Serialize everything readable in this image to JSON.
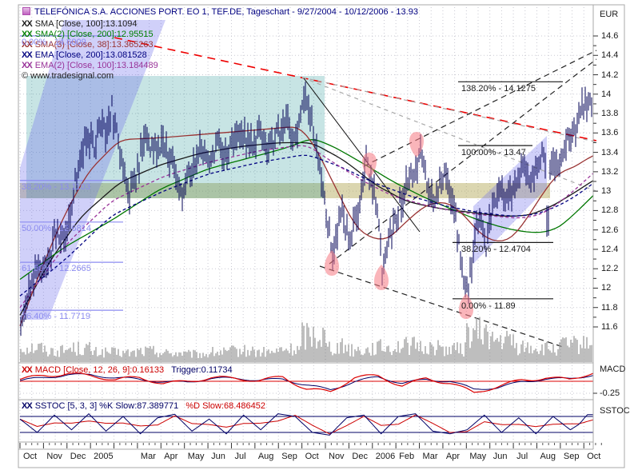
{
  "window": {
    "title": "TELEFÓNICA S.A. ACCIONES PORT. EO 1, TEF.DE, Tageschart - 9/27/2004 - 10/12/2006 - 13.93"
  },
  "copyright": "© www.tradesignal.com",
  "legend": {
    "indicators": [
      {
        "name": "SMA",
        "label": "SMA [Close, 100]:13.1094",
        "color": "#1a1a1a"
      },
      {
        "name": "SMA(2)",
        "label": "SMA(2) [Close, 200]:12.95515",
        "color": "#008000"
      },
      {
        "name": "SMA(3)",
        "label": "SMA(3) [Close, 38]:13.365263",
        "color": "#993333"
      },
      {
        "name": "EMA",
        "label": "EMA [Close, 200]:13.081528",
        "color": "#000080"
      },
      {
        "name": "EMA(2)",
        "label": "EMA(2) [Close, 100]:13.184489",
        "color": "#993399"
      }
    ]
  },
  "macd_legend": {
    "left": "MACD [Close, 12, 26, 9]:0.16133",
    "right": "Trigger:0.11734"
  },
  "sstoc_legend": {
    "left": "SSTOC [5, 3, 3] %K Slow:87.389771",
    "right": "%D Slow:68.486452"
  },
  "axis": {
    "currency_label": "EUR",
    "macd_label": "MACD",
    "macd_tick_label": "-0.25",
    "sstoc_label": "SSTOC"
  },
  "chart_data": {
    "type": "bar",
    "title": "TELEFÓNICA S.A. ACCIONES PORT. EO 1, TEF.DE, Tageschart - 9/27/2004 - 10/12/2006 - 13.93",
    "instrument": "TELEFÓNICA S.A. ACCIONES PORT. EO 1",
    "symbol": "TEF.DE",
    "period": "Tageschart",
    "date_range": "9/27/2004 - 10/12/2006",
    "last_price": 13.93,
    "currency": "EUR",
    "ylim": [
      11.5,
      14.7
    ],
    "price_ticks": [
      14.6,
      14.4,
      14.2,
      14,
      13.8,
      13.6,
      13.4,
      13.2,
      13,
      12.8,
      12.6,
      12.4,
      12.2,
      12,
      11.8,
      11.6
    ],
    "months": [
      "Oct",
      "Nov",
      "Dec",
      "2005",
      "",
      "Mar",
      "Apr",
      "May",
      "Jun",
      "Jul",
      "Aug",
      "Sep",
      "Oct",
      "Nov",
      "Dec",
      "2006",
      "Feb",
      "Mar",
      "Apr",
      "May",
      "Jun",
      "Jul",
      "Aug",
      "Sep",
      "Oct"
    ],
    "price_path": [
      [
        0,
        11.72
      ],
      [
        0.004,
        11.62
      ],
      [
        0.015,
        11.95
      ],
      [
        0.03,
        12.25
      ],
      [
        0.045,
        12.15
      ],
      [
        0.06,
        12.55
      ],
      [
        0.075,
        12.45
      ],
      [
        0.09,
        12.85
      ],
      [
        0.1,
        13.2
      ],
      [
        0.115,
        13.55
      ],
      [
        0.13,
        13.45
      ],
      [
        0.14,
        13.75
      ],
      [
        0.15,
        13.6
      ],
      [
        0.16,
        13.85
      ],
      [
        0.175,
        13.4
      ],
      [
        0.19,
        12.95
      ],
      [
        0.205,
        13.25
      ],
      [
        0.22,
        13.55
      ],
      [
        0.235,
        13.4
      ],
      [
        0.25,
        13.5
      ],
      [
        0.27,
        13.2
      ],
      [
        0.285,
        12.95
      ],
      [
        0.3,
        13.25
      ],
      [
        0.315,
        13.42
      ],
      [
        0.33,
        13.3
      ],
      [
        0.345,
        13.5
      ],
      [
        0.36,
        13.35
      ],
      [
        0.375,
        13.5
      ],
      [
        0.39,
        13.6
      ],
      [
        0.405,
        13.45
      ],
      [
        0.42,
        13.6
      ],
      [
        0.435,
        13.45
      ],
      [
        0.45,
        13.6
      ],
      [
        0.465,
        13.7
      ],
      [
        0.48,
        13.55
      ],
      [
        0.49,
        13.82
      ],
      [
        0.497,
        14.02
      ],
      [
        0.51,
        13.7
      ],
      [
        0.525,
        13.2
      ],
      [
        0.535,
        12.7
      ],
      [
        0.545,
        12.38
      ],
      [
        0.56,
        12.8
      ],
      [
        0.575,
        12.5
      ],
      [
        0.59,
        12.8
      ],
      [
        0.603,
        13.3
      ],
      [
        0.615,
        13.05
      ],
      [
        0.625,
        12.7
      ],
      [
        0.632,
        12.12
      ],
      [
        0.64,
        12.4
      ],
      [
        0.655,
        12.7
      ],
      [
        0.67,
        13.0
      ],
      [
        0.685,
        13.15
      ],
      [
        0.7,
        13.42
      ],
      [
        0.712,
        13.0
      ],
      [
        0.725,
        12.95
      ],
      [
        0.74,
        13.2
      ],
      [
        0.755,
        12.85
      ],
      [
        0.768,
        12.4
      ],
      [
        0.776,
        11.88
      ],
      [
        0.79,
        12.3
      ],
      [
        0.8,
        12.75
      ],
      [
        0.812,
        12.4
      ],
      [
        0.825,
        12.85
      ],
      [
        0.84,
        13.05
      ],
      [
        0.852,
        12.9
      ],
      [
        0.865,
        13.1
      ],
      [
        0.878,
        13.3
      ],
      [
        0.89,
        13.15
      ],
      [
        0.905,
        13.3
      ],
      [
        0.916,
        13.35
      ],
      [
        0.92,
        12.5
      ],
      [
        0.926,
        13.3
      ],
      [
        0.94,
        13.35
      ],
      [
        0.952,
        13.5
      ],
      [
        0.965,
        13.6
      ],
      [
        0.978,
        13.8
      ],
      [
        0.99,
        13.95
      ],
      [
        1,
        13.93
      ]
    ],
    "series": [
      {
        "name": "SMA [Close, 100]",
        "value": 13.1094,
        "color": "#1a1a1a",
        "dash": null,
        "points": [
          [
            0,
            11.72
          ],
          [
            0.049,
            12.25
          ],
          [
            0.105,
            12.73
          ],
          [
            0.174,
            13.09
          ],
          [
            0.244,
            13.27
          ],
          [
            0.314,
            13.39
          ],
          [
            0.384,
            13.46
          ],
          [
            0.453,
            13.5
          ],
          [
            0.509,
            13.5
          ],
          [
            0.565,
            13.32
          ],
          [
            0.621,
            13.06
          ],
          [
            0.676,
            12.89
          ],
          [
            0.732,
            12.82
          ],
          [
            0.788,
            12.78
          ],
          [
            0.844,
            12.74
          ],
          [
            0.888,
            12.75
          ],
          [
            0.93,
            12.85
          ],
          [
            0.966,
            12.98
          ],
          [
            1,
            13.109
          ]
        ]
      },
      {
        "name": "SMA(2) [Close, 200]",
        "value": 12.95515,
        "color": "#007700",
        "dash": null,
        "points": [
          [
            0,
            12.09
          ],
          [
            0.077,
            12.42
          ],
          [
            0.16,
            12.7
          ],
          [
            0.244,
            13.02
          ],
          [
            0.328,
            13.23
          ],
          [
            0.411,
            13.36
          ],
          [
            0.467,
            13.45
          ],
          [
            0.51,
            13.55
          ],
          [
            0.55,
            13.45
          ],
          [
            0.6,
            13.28
          ],
          [
            0.65,
            13.1
          ],
          [
            0.7,
            12.95
          ],
          [
            0.75,
            12.82
          ],
          [
            0.8,
            12.7
          ],
          [
            0.845,
            12.62
          ],
          [
            0.88,
            12.58
          ],
          [
            0.91,
            12.57
          ],
          [
            0.94,
            12.62
          ],
          [
            0.97,
            12.78
          ],
          [
            1,
            12.955
          ]
        ]
      },
      {
        "name": "SMA(3) [Close, 38]",
        "value": 13.365263,
        "color": "#993333",
        "dash": null,
        "points": [
          [
            0,
            11.61
          ],
          [
            0.035,
            12.17
          ],
          [
            0.077,
            12.75
          ],
          [
            0.119,
            13.2
          ],
          [
            0.174,
            13.53
          ],
          [
            0.244,
            13.55
          ],
          [
            0.328,
            13.59
          ],
          [
            0.411,
            13.63
          ],
          [
            0.488,
            13.67
          ],
          [
            0.516,
            13.45
          ],
          [
            0.551,
            13.03
          ],
          [
            0.586,
            12.62
          ],
          [
            0.614,
            12.51
          ],
          [
            0.642,
            12.5
          ],
          [
            0.676,
            12.7
          ],
          [
            0.711,
            12.87
          ],
          [
            0.746,
            12.89
          ],
          [
            0.774,
            12.76
          ],
          [
            0.802,
            12.56
          ],
          [
            0.83,
            12.47
          ],
          [
            0.858,
            12.51
          ],
          [
            0.886,
            12.73
          ],
          [
            0.913,
            12.99
          ],
          [
            0.941,
            13.2
          ],
          [
            0.966,
            13.24
          ],
          [
            0.99,
            13.34
          ],
          [
            1,
            13.365
          ]
        ]
      },
      {
        "name": "EMA [Close, 200]",
        "value": 13.081528,
        "color": "#000080",
        "dash": [
          4,
          3
        ],
        "points": [
          [
            0,
            11.92
          ],
          [
            0.08,
            12.3
          ],
          [
            0.16,
            12.75
          ],
          [
            0.25,
            13.0
          ],
          [
            0.33,
            13.18
          ],
          [
            0.42,
            13.3
          ],
          [
            0.5,
            13.38
          ],
          [
            0.56,
            13.25
          ],
          [
            0.62,
            13.08
          ],
          [
            0.68,
            12.95
          ],
          [
            0.74,
            12.85
          ],
          [
            0.8,
            12.78
          ],
          [
            0.86,
            12.74
          ],
          [
            0.9,
            12.76
          ],
          [
            0.94,
            12.85
          ],
          [
            0.97,
            12.95
          ],
          [
            1,
            13.081
          ]
        ]
      },
      {
        "name": "EMA(2) [Close, 100]",
        "value": 13.184489,
        "color": "#993399",
        "dash": [
          4,
          3
        ],
        "points": [
          [
            0,
            11.8
          ],
          [
            0.08,
            12.45
          ],
          [
            0.16,
            12.9
          ],
          [
            0.25,
            13.15
          ],
          [
            0.33,
            13.3
          ],
          [
            0.42,
            13.42
          ],
          [
            0.5,
            13.48
          ],
          [
            0.545,
            13.3
          ],
          [
            0.6,
            13.1
          ],
          [
            0.65,
            12.95
          ],
          [
            0.71,
            12.85
          ],
          [
            0.77,
            12.78
          ],
          [
            0.83,
            12.74
          ],
          [
            0.875,
            12.72
          ],
          [
            0.91,
            12.76
          ],
          [
            0.945,
            12.9
          ],
          [
            0.975,
            13.05
          ],
          [
            1,
            13.184
          ]
        ]
      }
    ],
    "volume_profile": [
      0.45,
      0.35,
      0.42,
      0.3,
      0.28,
      0.34,
      0.28,
      0.24,
      0.3,
      0.34,
      0.3,
      0.38,
      0.85,
      0.48,
      0.38,
      0.45,
      0.5,
      0.45,
      0.4,
      0.9,
      0.65,
      0.45,
      0.4,
      0.52,
      0.6
    ],
    "macd": {
      "value": 0.16133,
      "trigger": 0.11734,
      "tick": -0.25,
      "line": [
        0.02,
        0.12,
        0.18,
        0.12,
        0.02,
        0.06,
        -0.04,
        0.02,
        0.08,
        0.04,
        0.0,
        0.1,
        -0.14,
        -0.22,
        0.06,
        0.1,
        -0.08,
        0.08,
        -0.04,
        -0.26,
        -0.12,
        0.04,
        0.09,
        0.03,
        0.161
      ],
      "trigger_line": [
        0.0,
        0.08,
        0.15,
        0.14,
        0.06,
        0.03,
        -0.01,
        0.0,
        0.06,
        0.05,
        0.01,
        0.05,
        -0.06,
        -0.18,
        -0.02,
        0.08,
        -0.03,
        0.05,
        0.0,
        -0.18,
        -0.14,
        0.0,
        0.06,
        0.05,
        0.117
      ]
    },
    "sstoc": {
      "k": 87.389771,
      "d": 68.486452,
      "upper": 80,
      "lower": 20,
      "k_points": [
        [
          0,
          70
        ],
        [
          0.03,
          20
        ],
        [
          0.06,
          85
        ],
        [
          0.09,
          30
        ],
        [
          0.12,
          90
        ],
        [
          0.15,
          25
        ],
        [
          0.18,
          80
        ],
        [
          0.21,
          15
        ],
        [
          0.24,
          75
        ],
        [
          0.27,
          88
        ],
        [
          0.3,
          25
        ],
        [
          0.33,
          70
        ],
        [
          0.36,
          15
        ],
        [
          0.39,
          85
        ],
        [
          0.42,
          30
        ],
        [
          0.45,
          90
        ],
        [
          0.48,
          80
        ],
        [
          0.51,
          20
        ],
        [
          0.54,
          10
        ],
        [
          0.57,
          75
        ],
        [
          0.6,
          85
        ],
        [
          0.63,
          15
        ],
        [
          0.66,
          80
        ],
        [
          0.69,
          90
        ],
        [
          0.72,
          25
        ],
        [
          0.75,
          15
        ],
        [
          0.78,
          30
        ],
        [
          0.81,
          85
        ],
        [
          0.84,
          20
        ],
        [
          0.87,
          75
        ],
        [
          0.9,
          15
        ],
        [
          0.93,
          80
        ],
        [
          0.96,
          30
        ],
        [
          0.975,
          50
        ],
        [
          0.99,
          87
        ],
        [
          1,
          87
        ]
      ]
    },
    "fib_retracement": [
      {
        "label": "0.00% - 14.6009",
        "price": 14.6009
      },
      {
        "label": "38.20% - 13.1103",
        "price": 13.1103
      },
      {
        "label": "50.00% - 12.6814",
        "price": 12.6814
      },
      {
        "label": "61.80% - 12.2665",
        "price": 12.2665
      },
      {
        "label": "76.40% - 11.7719",
        "price": 11.7719
      }
    ],
    "fib_extension": [
      {
        "label": "138.20% - 14.1275",
        "price": 14.1275,
        "x1": 573,
        "x2": 704
      },
      {
        "label": "100.00% - 13.47",
        "price": 13.47,
        "x1": 573,
        "x2": 666
      },
      {
        "label": "38.20% - 12.4704",
        "price": 12.4704,
        "x1": 566,
        "x2": 692
      },
      {
        "label": "0.00% - 11.89",
        "price": 11.89,
        "x1": 566,
        "x2": 692
      }
    ],
    "signals": [
      {
        "x": 415,
        "y": 330,
        "kind": "low"
      },
      {
        "x": 462,
        "y": 206,
        "kind": "high"
      },
      {
        "x": 477,
        "y": 348,
        "kind": "low"
      },
      {
        "x": 521,
        "y": 180,
        "kind": "high"
      },
      {
        "x": 583,
        "y": 384,
        "kind": "low"
      }
    ],
    "drawings": {
      "zones": [
        {
          "kind": "band",
          "x1": 25,
          "y1": 229,
          "x2": 688,
          "y2": 248,
          "fill": "rgba(175,165,80,0.45)"
        },
        {
          "kind": "rect",
          "x1": 33,
          "y1": 95,
          "x2": 406,
          "y2": 248,
          "fill": "rgba(0,130,130,0.22)"
        }
      ],
      "channels": [
        {
          "points": [
            [
              80,
              25
            ],
            [
              207,
              25
            ],
            [
              60,
              400
            ],
            [
              25,
              400
            ],
            [
              25,
              210
            ]
          ],
          "fill": "rgba(110,110,235,0.32)"
        },
        {
          "points": [
            [
              592,
              258
            ],
            [
              684,
              170
            ],
            [
              684,
              235
            ],
            [
              592,
              330
            ]
          ],
          "fill": "rgba(110,110,235,0.32)"
        }
      ],
      "trendlines": [
        {
          "x1": 143,
          "y1": 47,
          "x2": 746,
          "y2": 176,
          "color": "#ee0000",
          "dash": [
            10,
            7
          ],
          "w": 1.6
        },
        {
          "x1": 378,
          "y1": 97,
          "x2": 748,
          "y2": 178,
          "color": "#a8a8a8",
          "dash": [
            5,
            5
          ],
          "w": 1.2
        },
        {
          "x1": 378,
          "y1": 97,
          "x2": 748,
          "y2": 240,
          "color": "#a8a8a8",
          "dash": [
            5,
            5
          ],
          "w": 1.2
        },
        {
          "x1": 412,
          "y1": 330,
          "x2": 746,
          "y2": 74,
          "color": "#222222",
          "dash": [
            7,
            5
          ],
          "w": 1.2
        },
        {
          "x1": 455,
          "y1": 208,
          "x2": 746,
          "y2": 63,
          "color": "#222222",
          "dash": [
            7,
            5
          ],
          "w": 1.2
        },
        {
          "x1": 400,
          "y1": 333,
          "x2": 704,
          "y2": 434,
          "color": "#222222",
          "dash": [
            7,
            5
          ],
          "w": 1.2
        },
        {
          "x1": 380,
          "y1": 98,
          "x2": 525,
          "y2": 290,
          "color": "#111111",
          "dash": null,
          "w": 1
        }
      ]
    }
  }
}
